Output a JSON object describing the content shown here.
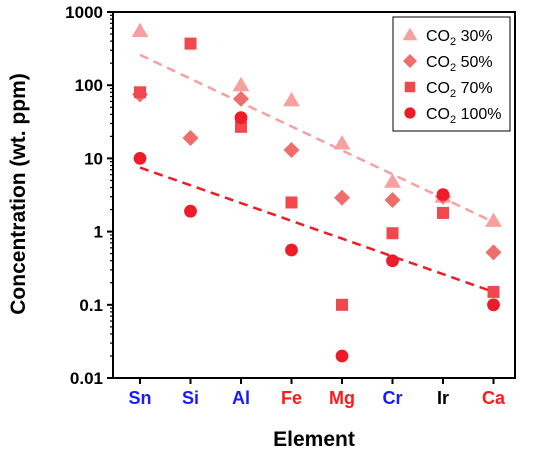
{
  "chart_data": {
    "type": "scatter",
    "xlabel": "Element",
    "ylabel": "Concentration (wt. ppm)",
    "y_scale": "log",
    "ylim": [
      0.01,
      1000
    ],
    "y_ticks": [
      "0.01",
      "0.1",
      "1",
      "10",
      "100",
      "1000"
    ],
    "y_tick_values": [
      0.01,
      0.1,
      1,
      10,
      100,
      1000
    ],
    "categories": [
      "Sn",
      "Si",
      "Al",
      "Fe",
      "Mg",
      "Cr",
      "Ir",
      "Ca"
    ],
    "category_colors": [
      "#1a1aff",
      "#1a1aff",
      "#1a1aff",
      "#ff1a1a",
      "#ff1a1a",
      "#1a1aff",
      "#000000",
      "#ff1a1a"
    ],
    "legend_position": "top-right",
    "series": [
      {
        "name": "CO2 30%",
        "legend_main": "CO",
        "legend_sub": "2",
        "legend_tail": " 30%",
        "marker": "triangle",
        "color": "#f7a0a0",
        "values": [
          550,
          null,
          100,
          62,
          16,
          4.8,
          3.0,
          1.4
        ]
      },
      {
        "name": "CO2 50%",
        "legend_main": "CO",
        "legend_sub": "2",
        "legend_tail": " 50%",
        "marker": "diamond",
        "color": "#f06d6d",
        "values": [
          75,
          19,
          65,
          13,
          2.9,
          2.7,
          3.0,
          0.52
        ]
      },
      {
        "name": "CO2 70%",
        "legend_main": "CO",
        "legend_sub": "2",
        "legend_tail": " 70%",
        "marker": "square",
        "color": "#f0484c",
        "values": [
          80,
          370,
          27,
          2.5,
          0.1,
          0.95,
          1.8,
          0.15
        ]
      },
      {
        "name": "CO2 100%",
        "legend_main": "CO",
        "legend_sub": "2",
        "legend_tail": " 100%",
        "marker": "circle",
        "color": "#ee1c28",
        "values": [
          10,
          1.9,
          36,
          0.56,
          0.02,
          0.4,
          3.2,
          0.1
        ]
      }
    ],
    "trendlines": [
      {
        "color": "#f7a0a0",
        "from": [
          "Sn",
          260
        ],
        "to": [
          "Ca",
          1.35
        ]
      },
      {
        "color": "#ee1c28",
        "from": [
          "Sn",
          7.5
        ],
        "to": [
          "Ca",
          0.15
        ]
      }
    ]
  }
}
